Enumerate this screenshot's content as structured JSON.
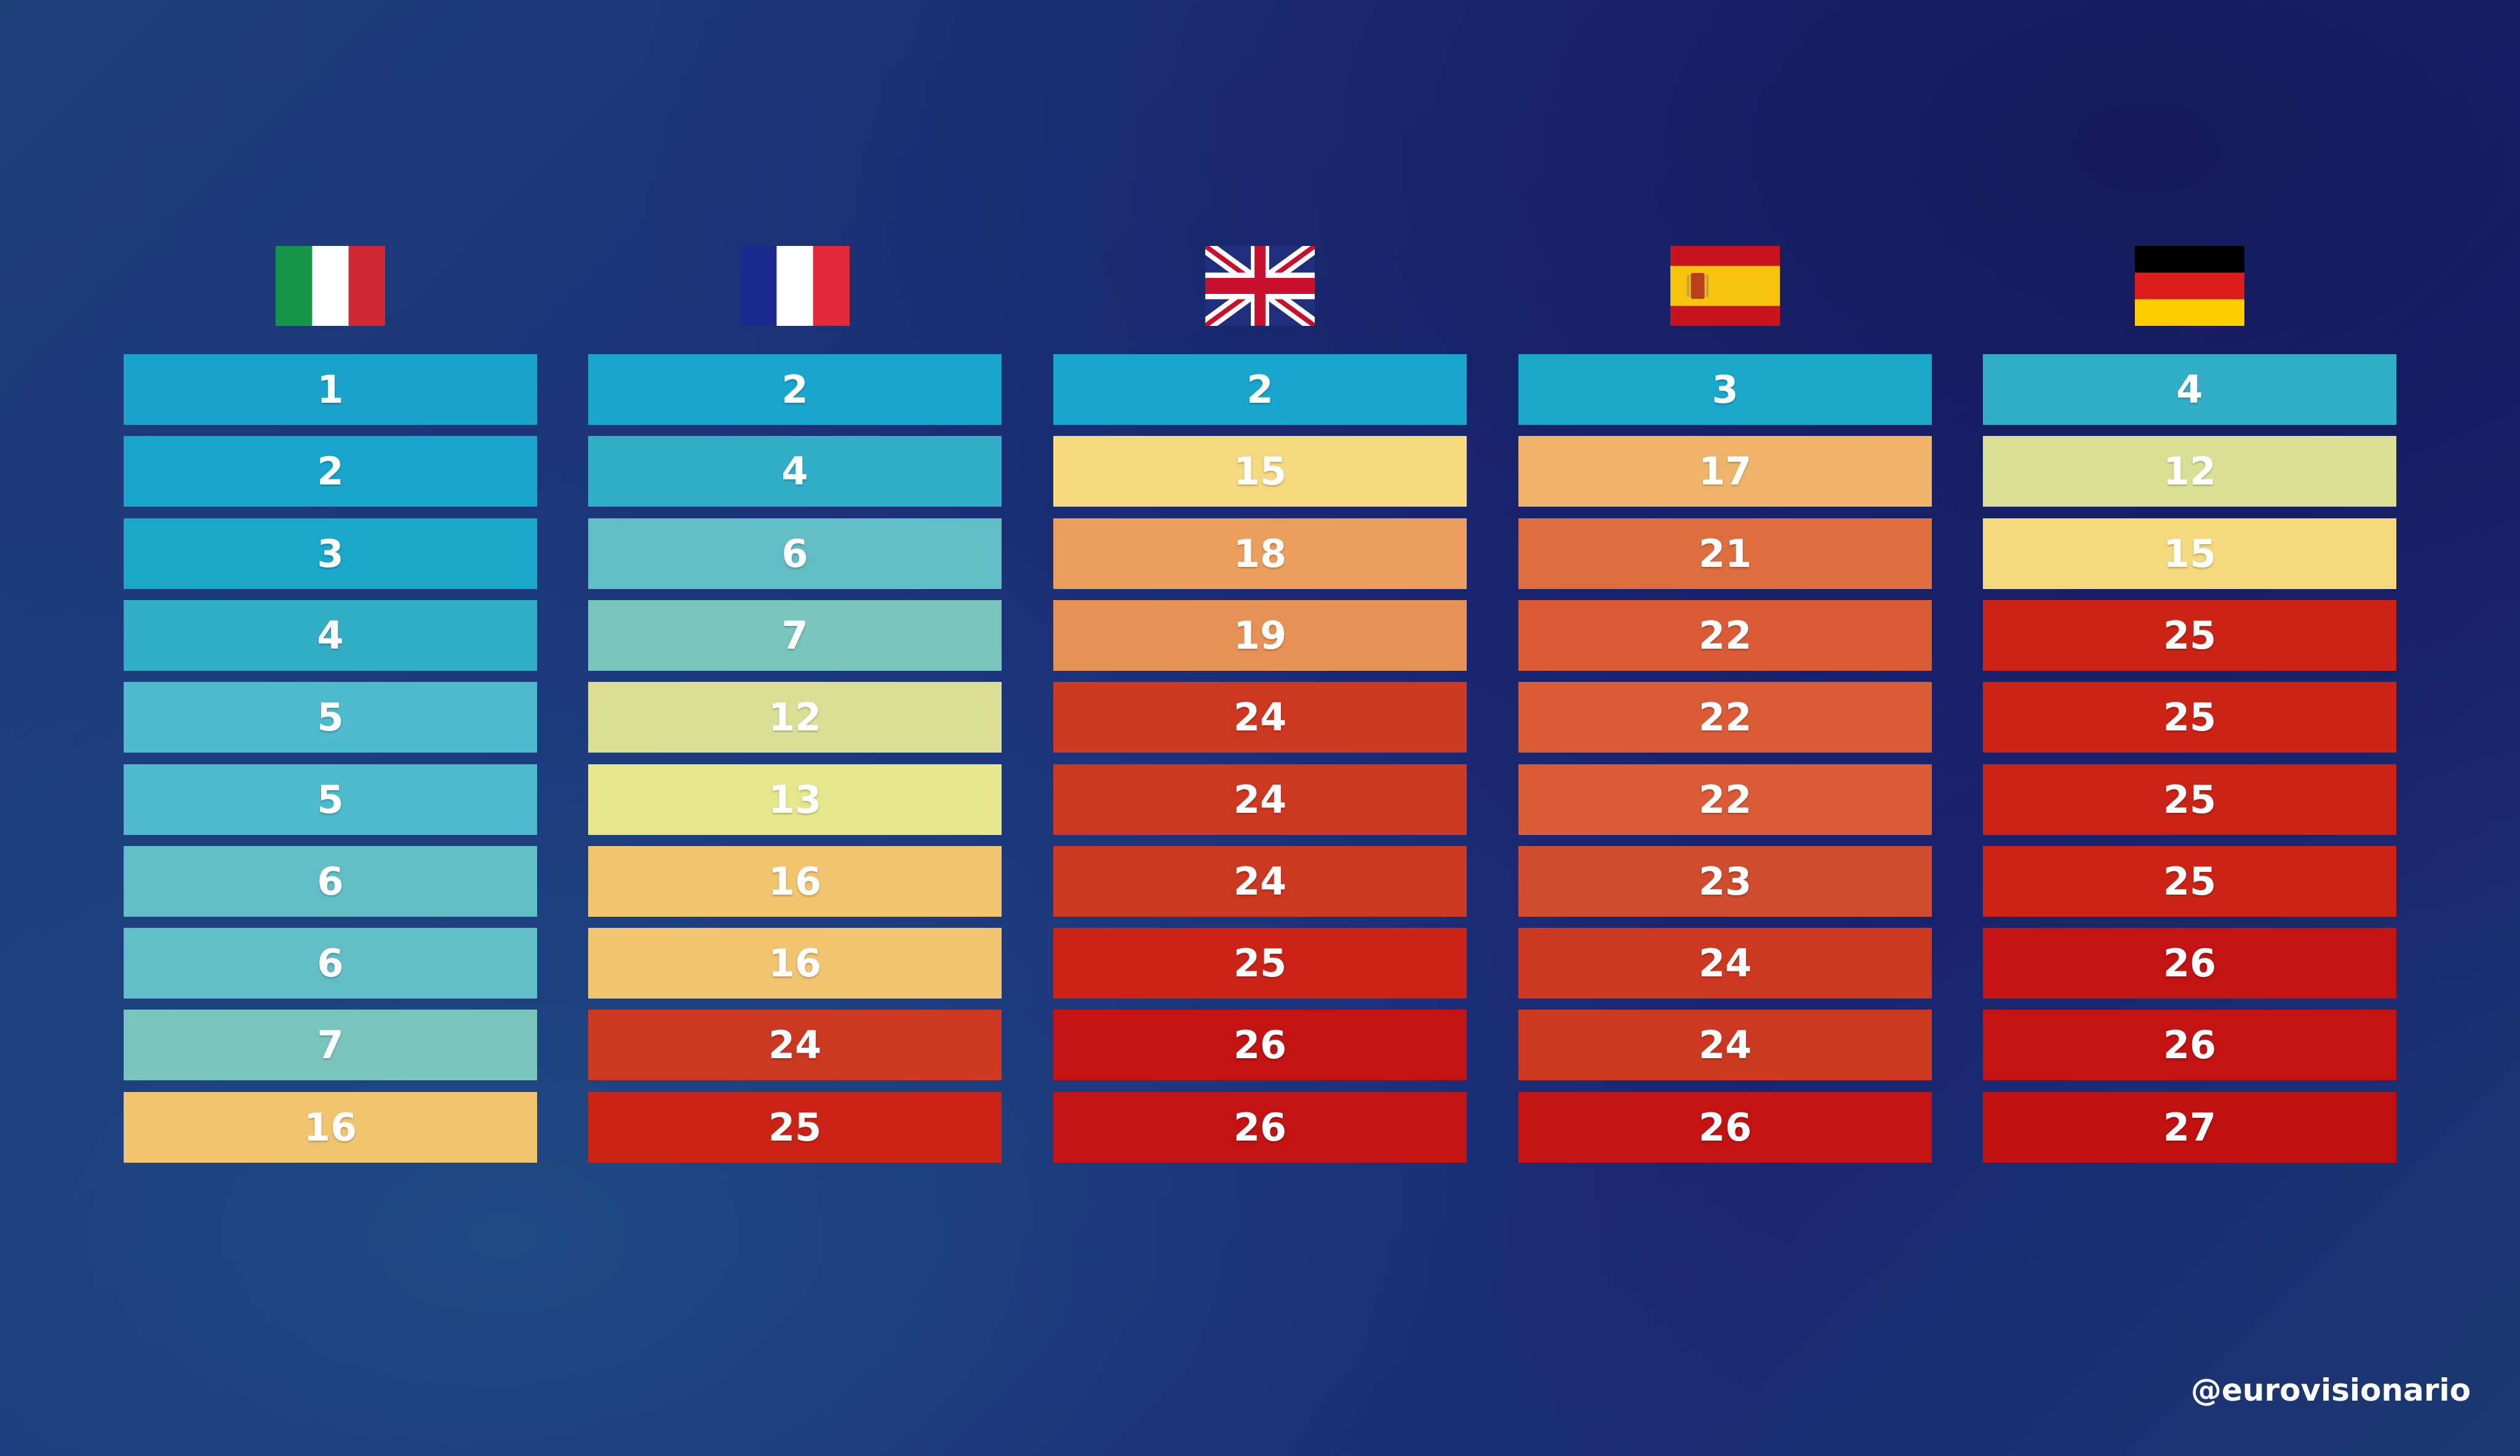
{
  "chart_data": {
    "type": "table",
    "columns": [
      {
        "flag": "italy-flag",
        "values": [
          1,
          2,
          3,
          4,
          5,
          5,
          6,
          6,
          7,
          16
        ]
      },
      {
        "flag": "france-flag",
        "values": [
          2,
          4,
          6,
          7,
          12,
          13,
          16,
          16,
          24,
          25
        ]
      },
      {
        "flag": "united-kingdom-flag",
        "values": [
          2,
          15,
          18,
          19,
          24,
          24,
          24,
          25,
          26,
          26
        ]
      },
      {
        "flag": "spain-flag",
        "values": [
          3,
          17,
          21,
          22,
          22,
          22,
          23,
          24,
          24,
          26
        ]
      },
      {
        "flag": "germany-flag",
        "values": [
          4,
          12,
          15,
          25,
          25,
          25,
          25,
          26,
          26,
          27
        ]
      }
    ],
    "colors": {
      "1": "#1ba3cb",
      "2": "#18a6cc",
      "3": "#1ba7ca",
      "4": "#33aec9",
      "5": "#4dbbcd",
      "6": "#62bec6",
      "7": "#79c5bd",
      "12": "#d9e096",
      "13": "#e6e78c",
      "15": "#f5d97e",
      "16": "#f1c470",
      "17": "#efb46a",
      "18": "#eb9f5c",
      "19": "#e89156",
      "21": "#dd6e40",
      "22": "#d95c37",
      "23": "#d14b2e",
      "24": "#cd3820",
      "25": "#cb2416",
      "26": "#c31313",
      "27": "#c0100f"
    }
  },
  "watermark": "@eurovisionario"
}
